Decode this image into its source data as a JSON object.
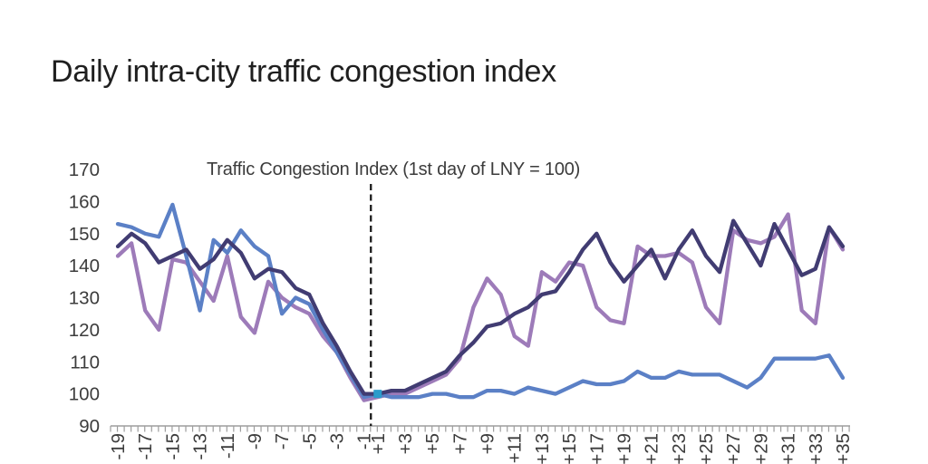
{
  "page": {
    "title": "Daily intra-city traffic congestion index"
  },
  "chart_data": {
    "type": "line",
    "title": "Traffic Congestion Index (1st day of LNY = 100)",
    "xlabel": "",
    "ylabel": "",
    "ylim": [
      90,
      170
    ],
    "yticks": [
      170,
      160,
      150,
      140,
      130,
      120,
      110,
      100,
      90
    ],
    "grid": false,
    "legend": "none",
    "x_categories": [
      "-19",
      "-18",
      "-17",
      "-16",
      "-15",
      "-14",
      "-13",
      "-12",
      "-11",
      "-10",
      "-9",
      "-8",
      "-7",
      "-6",
      "-5",
      "-4",
      "-3",
      "-2",
      "-1",
      "+1",
      "+2",
      "+3",
      "+4",
      "+5",
      "+6",
      "+7",
      "+8",
      "+9",
      "+10",
      "+11",
      "+12",
      "+13",
      "+14",
      "+15",
      "+16",
      "+17",
      "+18",
      "+19",
      "+20",
      "+21",
      "+22",
      "+23",
      "+24",
      "+25",
      "+26",
      "+27",
      "+28",
      "+29",
      "+30",
      "+31",
      "+32",
      "+33",
      "+34",
      "+35"
    ],
    "x_labels_shown": [
      "-19",
      "-17",
      "-15",
      "-13",
      "-11",
      "-9",
      "-7",
      "-5",
      "-3",
      "-1",
      "+1",
      "+3",
      "+5",
      "+7",
      "+9",
      "+11",
      "+13",
      "+15",
      "+17",
      "+19",
      "+21",
      "+23",
      "+25",
      "+27",
      "+29",
      "+31",
      "+33",
      "+35"
    ],
    "series": [
      {
        "name": "light-purple-line",
        "color": "#9d7bb9",
        "values": [
          143,
          147,
          126,
          120,
          142,
          141,
          135,
          129,
          143,
          124,
          119,
          135,
          130,
          127,
          125,
          118,
          113,
          105,
          98,
          99,
          100,
          100,
          102,
          104,
          106,
          111,
          127,
          136,
          131,
          118,
          115,
          138,
          135,
          141,
          140,
          127,
          123,
          122,
          146,
          143,
          143,
          144,
          141,
          127,
          122,
          151,
          148,
          147,
          149,
          156,
          126,
          122,
          152,
          145
        ]
      },
      {
        "name": "blue-line",
        "color": "#5b80c6",
        "values": [
          153,
          152,
          150,
          149,
          159,
          143,
          126,
          148,
          144,
          151,
          146,
          143,
          125,
          130,
          128,
          120,
          113,
          106,
          99,
          100,
          99,
          99,
          99,
          100,
          100,
          99,
          99,
          101,
          101,
          100,
          102,
          101,
          100,
          102,
          104,
          103,
          103,
          104,
          107,
          105,
          105,
          107,
          106,
          106,
          106,
          104,
          102,
          105,
          111,
          111,
          111,
          111,
          112,
          105
        ]
      },
      {
        "name": "dark-navy-line",
        "color": "#413c72",
        "values": [
          146,
          150,
          147,
          141,
          143,
          145,
          139,
          142,
          148,
          144,
          136,
          139,
          138,
          133,
          131,
          122,
          115,
          107,
          100,
          100,
          101,
          101,
          103,
          105,
          107,
          112,
          116,
          121,
          122,
          125,
          127,
          131,
          132,
          138,
          145,
          150,
          141,
          135,
          140,
          145,
          136,
          145,
          151,
          143,
          138,
          154,
          147,
          140,
          153,
          145,
          137,
          139,
          152,
          146
        ]
      }
    ],
    "annotations": {
      "lny_divider": {
        "type": "vertical-dashed-line",
        "between_days": [
          "-1",
          "+1"
        ],
        "color": "#1a1a1a"
      },
      "marker": {
        "type": "square",
        "day": "+1",
        "value": 100,
        "color": "#2a9ccb"
      }
    },
    "axis_color": "#9d9d9d",
    "text_color": "#3c3c3c"
  }
}
